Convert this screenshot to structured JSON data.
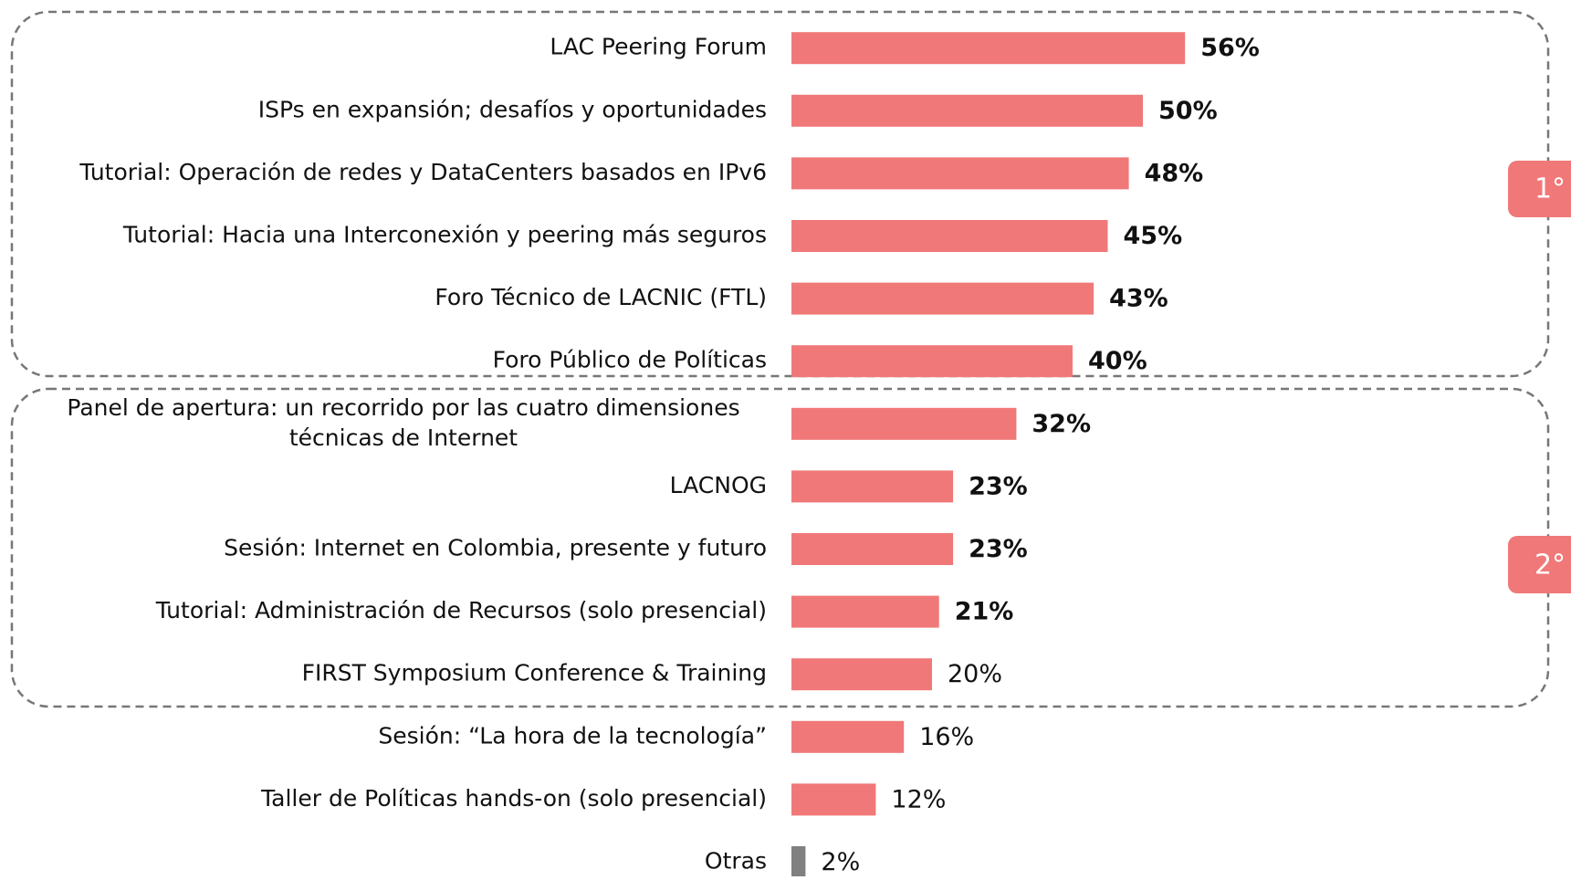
{
  "chart_data": {
    "type": "barh",
    "categories": [
      "LAC Peering Forum",
      "ISPs en expansión; desafíos y oportunidades",
      "Tutorial: Operación de redes y DataCenters basados en IPv6",
      "Tutorial: Hacia una Interconexión y peering más seguros",
      "Foro Técnico de LACNIC (FTL)",
      "Foro Público de Políticas",
      "Panel de apertura: un recorrido por las cuatro dimensiones\ntécnicas de Internet",
      "LACNOG",
      "Sesión: Internet en Colombia, presente y futuro",
      "Tutorial: Administración de Recursos (solo presencial)",
      "FIRST Symposium Conference & Training",
      "Sesión: “La hora de la tecnología”",
      "Taller de Políticas hands-on (solo presencial)",
      "Otras"
    ],
    "values": [
      56,
      50,
      48,
      45,
      43,
      40,
      32,
      23,
      23,
      21,
      20,
      16,
      12,
      2
    ],
    "value_labels": [
      "56%",
      "50%",
      "48%",
      "45%",
      "43%",
      "40%",
      "32%",
      "23%",
      "23%",
      "21%",
      "20%",
      "16%",
      "12%",
      "2%"
    ],
    "colors": [
      "#f07878",
      "#f07878",
      "#f07878",
      "#f07878",
      "#f07878",
      "#f07878",
      "#f07878",
      "#f07878",
      "#f07878",
      "#f07878",
      "#f07878",
      "#f07878",
      "#f07878",
      "#808080"
    ],
    "groups": [
      {
        "label": "1°"
      },
      {
        "label": "2°"
      }
    ]
  }
}
